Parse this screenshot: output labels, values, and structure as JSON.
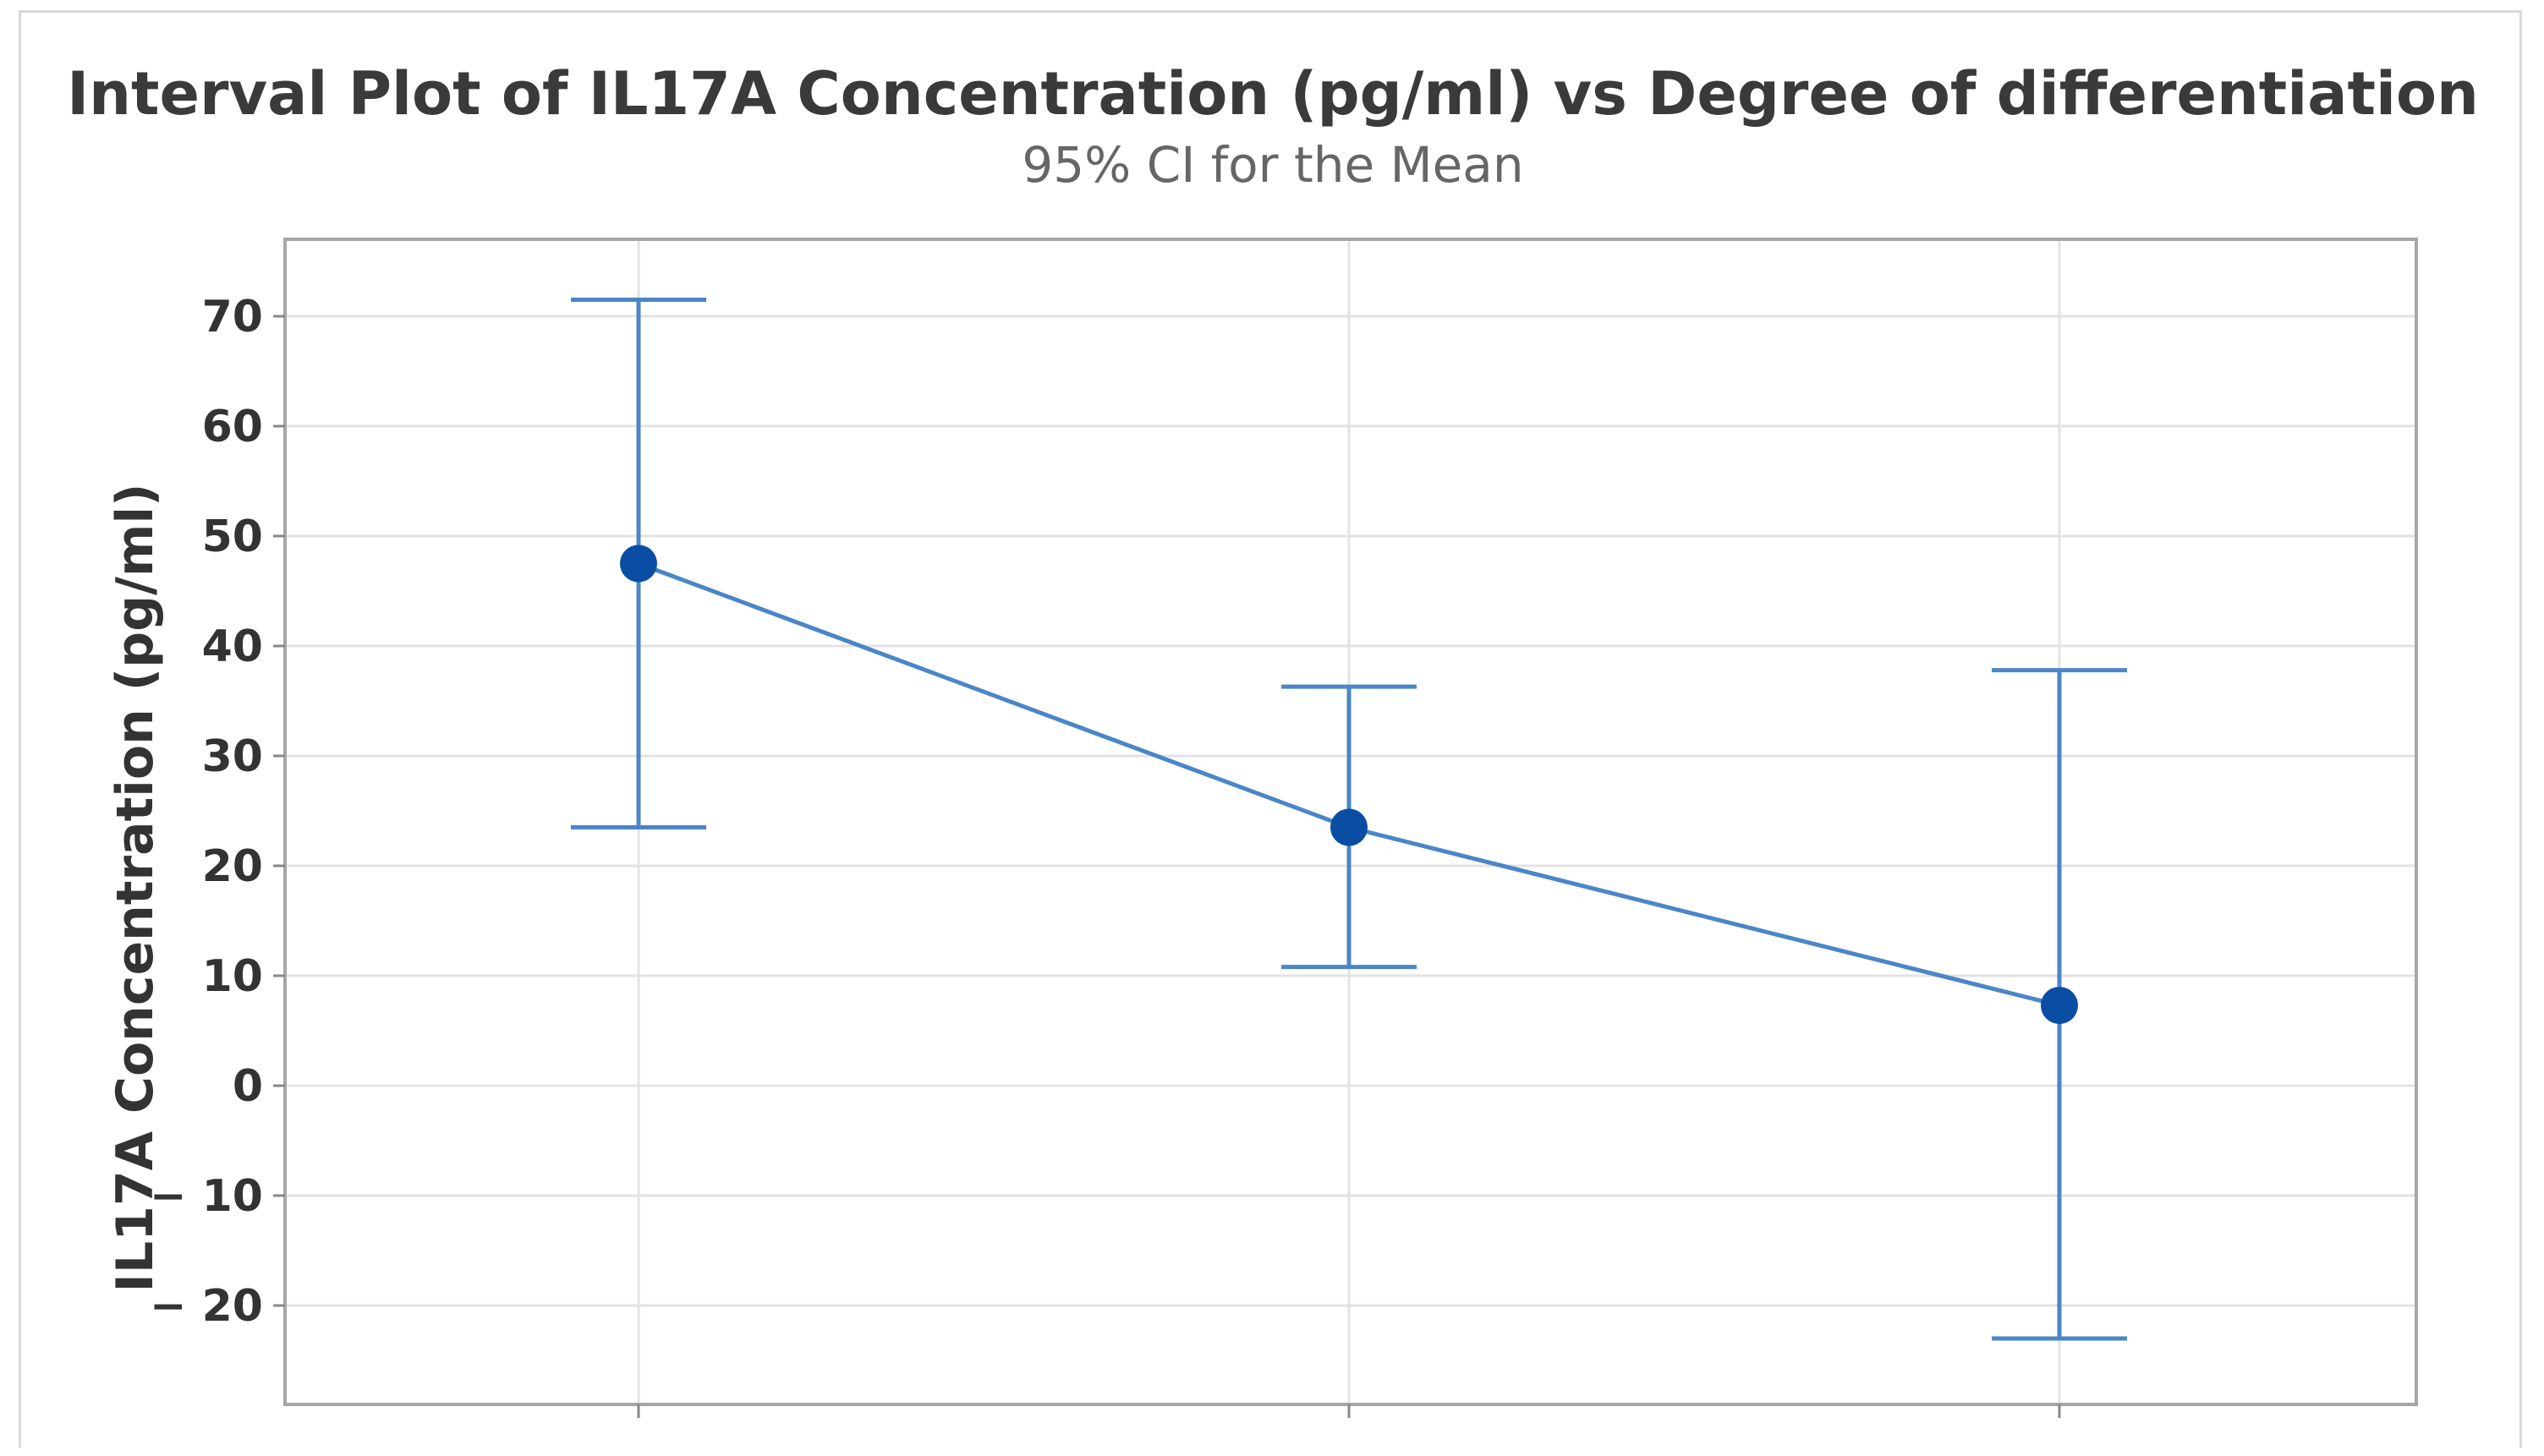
{
  "chart_data": {
    "type": "interval",
    "title": "Interval Plot of IL17A Concentration (pg/ml) vs Degree of differentiation",
    "subtitle": "95% CI for the Mean",
    "xlabel": "",
    "ylabel": "IL17A Concentration (pg/ml)",
    "ylim": [
      -29,
      77
    ],
    "yticks": [
      70,
      60,
      50,
      40,
      30,
      20,
      10,
      0,
      -10,
      -20
    ],
    "ytick_labels": [
      "70",
      "60",
      "50",
      "40",
      "30",
      "20",
      "10",
      "0",
      "− 10",
      "− 20"
    ],
    "categories": [
      "",
      "",
      ""
    ],
    "means": [
      47.5,
      23.5,
      7.3
    ],
    "ci_lower": [
      23.5,
      10.8,
      -23.0
    ],
    "ci_upper": [
      71.5,
      36.3,
      37.8
    ],
    "grid": true,
    "colors": {
      "interval": "#4a86c8",
      "mean_marker": "#0a4ea3",
      "line": "#4a86c8",
      "grid": "#e3e3e3",
      "frame": "#a6a6a6"
    }
  }
}
